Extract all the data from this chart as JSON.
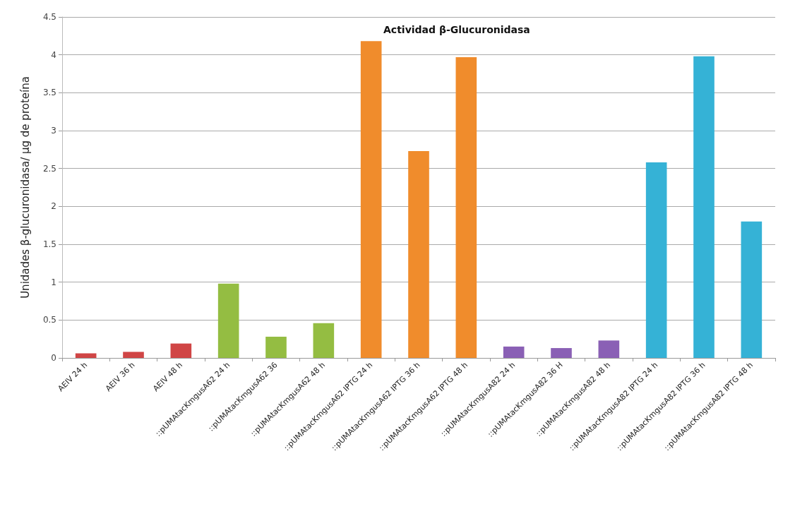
{
  "chart_data": {
    "type": "bar",
    "title": "Actividad β-Glucuronidasa",
    "ylabel": "Unidades β-glucuronidasa/ µg de proteína",
    "categories": [
      "AEIV 24 h",
      "AEIV 36 h",
      "AEIV 48 h",
      "::pUMAtacKmgusA62 24 h",
      "::pUMAtacKmgusA62 36",
      "::pUMAtacKmgusA62 48 h",
      "::pUMAtacKmgusA62 IPTG 24 h",
      "::pUMAtacKmgusA62 IPTG 36 h",
      "::pUMAtacKmgusA62 IPTG 48 h",
      "::pUMAtacKmgusA82 24 h",
      "::pUMAtacKmgusA82 36 H",
      "::pUMAtacKmgusA82 48 h",
      "::pUMAtacKmgusA82 IPTG 24 h",
      "::pUMAtacKmgusA82 IPTG 36 h",
      "::pUMAtacKmgusA82 IPTG 48 h"
    ],
    "values": [
      0.06,
      0.08,
      0.19,
      0.98,
      0.28,
      0.46,
      4.18,
      2.73,
      3.97,
      0.15,
      0.13,
      0.23,
      2.58,
      3.98,
      1.8
    ],
    "colors": [
      "#d04545",
      "#d04545",
      "#d04545",
      "#94bd42",
      "#94bd42",
      "#94bd42",
      "#f08c2c",
      "#f08c2c",
      "#f08c2c",
      "#8a60b5",
      "#8a60b5",
      "#8a60b5",
      "#35b2d6",
      "#35b2d6",
      "#35b2d6"
    ],
    "ylim": [
      0,
      4.5
    ],
    "yticks": [
      0,
      0.5,
      1,
      1.5,
      2,
      2.5,
      3,
      3.5,
      4,
      4.5
    ],
    "grid": "y"
  }
}
